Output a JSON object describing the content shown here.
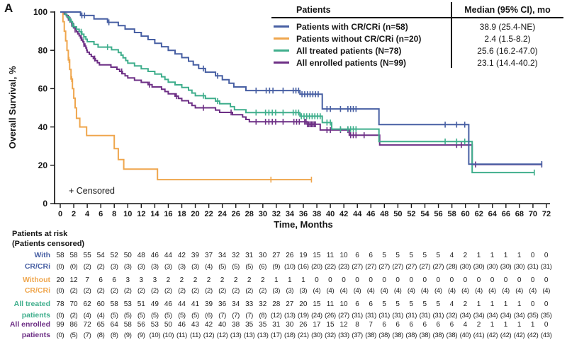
{
  "panel_label": "A",
  "legend_table": {
    "col1_header": "Patients",
    "col2_header": "Median (95% CI), mo"
  },
  "at_risk_table": {
    "header_line1": "Patients at risk",
    "header_line2": "(Patients censored)",
    "time_points": [
      0,
      2,
      4,
      6,
      8,
      10,
      12,
      14,
      16,
      18,
      20,
      22,
      24,
      26,
      28,
      30,
      32,
      34,
      36,
      38,
      40,
      42,
      44,
      46,
      48,
      50,
      52,
      54,
      56,
      58,
      60,
      62,
      64,
      66,
      68,
      70,
      72
    ],
    "groups": [
      {
        "label_line1": "With",
        "label_line2": "CR/CRi",
        "color": "#475fa3",
        "at_risk": [
          58,
          58,
          55,
          54,
          52,
          50,
          48,
          46,
          44,
          42,
          39,
          37,
          34,
          32,
          31,
          30,
          27,
          26,
          19,
          15,
          11,
          10,
          6,
          6,
          5,
          5,
          5,
          5,
          5,
          4,
          2,
          1,
          1,
          1,
          1,
          0,
          0
        ],
        "censored": [
          "(0)",
          "(0)",
          "(2)",
          "(2)",
          "(3)",
          "(3)",
          "(3)",
          "(3)",
          "(3)",
          "(3)",
          "(3)",
          "(4)",
          "(5)",
          "(5)",
          "(5)",
          "(6)",
          "(9)",
          "(10)",
          "(16)",
          "(20)",
          "(22)",
          "(23)",
          "(27)",
          "(27)",
          "(27)",
          "(27)",
          "(27)",
          "(27)",
          "(27)",
          "(28)",
          "(30)",
          "(30)",
          "(30)",
          "(30)",
          "(30)",
          "(31)",
          "(31)"
        ]
      },
      {
        "label_line1": "Without",
        "label_line2": "CR/CRi",
        "color": "#efa64d",
        "at_risk": [
          20,
          12,
          7,
          6,
          6,
          3,
          3,
          3,
          2,
          2,
          2,
          2,
          2,
          2,
          2,
          2,
          1,
          1,
          1,
          0,
          0,
          0,
          0,
          0,
          0,
          0,
          0,
          0,
          0,
          0,
          0,
          0,
          0,
          0,
          0,
          0,
          0
        ],
        "censored": [
          "(0)",
          "(2)",
          "(2)",
          "(2)",
          "(2)",
          "(2)",
          "(2)",
          "(2)",
          "(2)",
          "(2)",
          "(2)",
          "(2)",
          "(2)",
          "(2)",
          "(2)",
          "(2)",
          "(3)",
          "(3)",
          "(3)",
          "(4)",
          "(4)",
          "(4)",
          "(4)",
          "(4)",
          "(4)",
          "(4)",
          "(4)",
          "(4)",
          "(4)",
          "(4)",
          "(4)",
          "(4)",
          "(4)",
          "(4)",
          "(4)",
          "(4)",
          "(4)"
        ]
      },
      {
        "label_line1": "All treated",
        "label_line2": "patients",
        "color": "#3fae8c",
        "at_risk": [
          78,
          70,
          62,
          60,
          58,
          53,
          51,
          49,
          46,
          44,
          41,
          39,
          36,
          34,
          33,
          32,
          28,
          27,
          20,
          15,
          11,
          10,
          6,
          6,
          5,
          5,
          5,
          5,
          5,
          4,
          2,
          1,
          1,
          1,
          1,
          0,
          0
        ],
        "censored": [
          "(0)",
          "(2)",
          "(4)",
          "(4)",
          "(5)",
          "(5)",
          "(5)",
          "(5)",
          "(5)",
          "(5)",
          "(5)",
          "(6)",
          "(7)",
          "(7)",
          "(7)",
          "(8)",
          "(12)",
          "(13)",
          "(19)",
          "(24)",
          "(26)",
          "(27)",
          "(31)",
          "(31)",
          "(31)",
          "(31)",
          "(31)",
          "(31)",
          "(31)",
          "(32)",
          "(34)",
          "(34)",
          "(34)",
          "(34)",
          "(34)",
          "(35)",
          "(35)"
        ]
      },
      {
        "label_line1": "All enrolled",
        "label_line2": "patients",
        "color": "#6d2f85",
        "at_risk": [
          99,
          86,
          72,
          65,
          64,
          58,
          56,
          53,
          50,
          46,
          43,
          42,
          40,
          38,
          35,
          35,
          31,
          30,
          26,
          17,
          15,
          12,
          8,
          7,
          6,
          6,
          6,
          6,
          6,
          6,
          4,
          2,
          1,
          1,
          1,
          1,
          0
        ],
        "censored": [
          "(0)",
          "(5)",
          "(7)",
          "(8)",
          "(8)",
          "(9)",
          "(9)",
          "(10)",
          "(10)",
          "(11)",
          "(11)",
          "(12)",
          "(12)",
          "(13)",
          "(13)",
          "(13)",
          "(17)",
          "(18)",
          "(21)",
          "(30)",
          "(32)",
          "(33)",
          "(37)",
          "(38)",
          "(38)",
          "(38)",
          "(38)",
          "(38)",
          "(38)",
          "(38)",
          "(40)",
          "(41)",
          "(42)",
          "(42)",
          "(42)",
          "(42)",
          "(43)"
        ]
      }
    ]
  },
  "chart_data": {
    "type": "line",
    "subtype": "kaplan-meier-step",
    "title": "Overall Survival",
    "xlabel": "Time, Months",
    "ylabel": "Overall Survival, %",
    "censored_note": "+ Censored",
    "xlim": [
      0,
      72
    ],
    "ylim": [
      0,
      100
    ],
    "x_ticks": [
      0,
      2,
      4,
      6,
      8,
      10,
      12,
      14,
      16,
      18,
      20,
      22,
      24,
      26,
      28,
      30,
      32,
      34,
      36,
      38,
      40,
      42,
      44,
      46,
      48,
      50,
      52,
      54,
      56,
      58,
      60,
      62,
      64,
      66,
      68,
      70,
      72
    ],
    "y_ticks": [
      0,
      20,
      40,
      60,
      80,
      100
    ],
    "grid": false,
    "legend_position": "top-right",
    "series": [
      {
        "name": "Patients with CR/CRi (n=58)",
        "median": "38.9 (25.4-NE)",
        "color": "#475fa3",
        "steps": [
          [
            0,
            100
          ],
          [
            3,
            98.2
          ],
          [
            5,
            96.4
          ],
          [
            7,
            94.6
          ],
          [
            8.6,
            92.9
          ],
          [
            9.6,
            91.1
          ],
          [
            11,
            89.3
          ],
          [
            12,
            87.4
          ],
          [
            13,
            85.6
          ],
          [
            14,
            83.7
          ],
          [
            15,
            81.9
          ],
          [
            16,
            80
          ],
          [
            17,
            78.1
          ],
          [
            18,
            76.2
          ],
          [
            19,
            74.3
          ],
          [
            19.7,
            72.4
          ],
          [
            20.5,
            70.5
          ],
          [
            21.5,
            68.6
          ],
          [
            23,
            66.7
          ],
          [
            24,
            64.7
          ],
          [
            25,
            62.8
          ],
          [
            25.7,
            60.9
          ],
          [
            27.5,
            59
          ],
          [
            35.5,
            57.1
          ],
          [
            38.8,
            49.4
          ],
          [
            47.2,
            41.2
          ],
          [
            60.5,
            20.6
          ]
        ],
        "end_time": 71.3,
        "censor_times": [
          3.2,
          3.6,
          7.2,
          21.2,
          23.3,
          29,
          30.5,
          31,
          31.5,
          33,
          34.5,
          34.9,
          35.3,
          35.8,
          36.2,
          36.6,
          37,
          37.4,
          37.8,
          38.2,
          39.5,
          40,
          41.5,
          42.6,
          43,
          43.4,
          43.8,
          57,
          58.7,
          59.9,
          71.3
        ]
      },
      {
        "name": "Patients without CR/CRi (n=20)",
        "median": "2.4 (1.5-8.2)",
        "color": "#efa64d",
        "steps": [
          [
            0,
            100
          ],
          [
            0.4,
            95
          ],
          [
            0.6,
            90
          ],
          [
            0.8,
            85
          ],
          [
            1,
            80
          ],
          [
            1.2,
            75
          ],
          [
            1.4,
            70
          ],
          [
            1.6,
            65
          ],
          [
            1.8,
            60
          ],
          [
            2,
            55
          ],
          [
            2.2,
            50
          ],
          [
            2.4,
            44.5
          ],
          [
            2.9,
            40
          ],
          [
            3.9,
            35.5
          ],
          [
            8,
            28.7
          ],
          [
            8.6,
            23
          ],
          [
            9.4,
            18
          ],
          [
            14.4,
            12.5
          ]
        ],
        "end_time": 37.2,
        "censor_times": [
          1.3,
          1.7,
          31.2,
          37.2
        ]
      },
      {
        "name": "All treated patients (N=78)",
        "median": "25.6 (16.2-47.0)",
        "color": "#3fae8c",
        "steps": [
          [
            0,
            100
          ],
          [
            0.7,
            98.7
          ],
          [
            1,
            97.4
          ],
          [
            1.3,
            96.2
          ],
          [
            1.6,
            94.9
          ],
          [
            1.8,
            93.6
          ],
          [
            2,
            92.3
          ],
          [
            2.4,
            91
          ],
          [
            2.8,
            89.7
          ],
          [
            3.2,
            88.4
          ],
          [
            3.5,
            87.1
          ],
          [
            3.8,
            85.8
          ],
          [
            4,
            84.5
          ],
          [
            5,
            83.1
          ],
          [
            5.6,
            81.7
          ],
          [
            7.6,
            80.3
          ],
          [
            8.6,
            78.9
          ],
          [
            9,
            77.5
          ],
          [
            9.3,
            76.1
          ],
          [
            9.7,
            74.7
          ],
          [
            10,
            73.3
          ],
          [
            11,
            71.9
          ],
          [
            12,
            70.4
          ],
          [
            13,
            69
          ],
          [
            14,
            67.6
          ],
          [
            15,
            66.2
          ],
          [
            15.5,
            64.8
          ],
          [
            16,
            63.4
          ],
          [
            17,
            62
          ],
          [
            18,
            60.6
          ],
          [
            19,
            59.2
          ],
          [
            19.5,
            57.7
          ],
          [
            20,
            56.3
          ],
          [
            21.5,
            54.9
          ],
          [
            23,
            53.5
          ],
          [
            23.6,
            52.1
          ],
          [
            25.2,
            50.6
          ],
          [
            25.8,
            49
          ],
          [
            27.5,
            47.5
          ],
          [
            35.5,
            45.6
          ],
          [
            38.8,
            42.3
          ],
          [
            40.2,
            38.9
          ],
          [
            47.2,
            32.4
          ],
          [
            61,
            16.2
          ]
        ],
        "end_time": 70.2,
        "censor_times": [
          1.4,
          1.8,
          3.1,
          3.5,
          7,
          21.2,
          23.3,
          29,
          30.4,
          30.9,
          31.4,
          31.9,
          33,
          34.5,
          34.9,
          35.3,
          35.7,
          36.1,
          36.5,
          36.9,
          37.3,
          37.7,
          38.1,
          38.5,
          39.5,
          40,
          41.5,
          42.6,
          43,
          43.4,
          43.8,
          57,
          58.7,
          59.9,
          70.2
        ]
      },
      {
        "name": "All enrolled patients (N=99)",
        "median": "23.1 (14.4-40.2)",
        "color": "#6d2f85",
        "steps": [
          [
            0,
            100
          ],
          [
            0.6,
            99
          ],
          [
            0.9,
            98
          ],
          [
            1.1,
            97
          ],
          [
            1.3,
            95.9
          ],
          [
            1.5,
            94.9
          ],
          [
            1.7,
            93.9
          ],
          [
            1.85,
            92.9
          ],
          [
            2,
            91.8
          ],
          [
            2.2,
            90.8
          ],
          [
            2.4,
            89.7
          ],
          [
            2.6,
            88.6
          ],
          [
            2.8,
            87.6
          ],
          [
            3,
            86.5
          ],
          [
            3.2,
            85.4
          ],
          [
            3.35,
            84.4
          ],
          [
            3.5,
            83.3
          ],
          [
            3.65,
            82.2
          ],
          [
            3.8,
            81.2
          ],
          [
            3.9,
            80.1
          ],
          [
            4,
            79
          ],
          [
            4.3,
            77.9
          ],
          [
            4.6,
            76.8
          ],
          [
            4.9,
            75.7
          ],
          [
            5.2,
            74.6
          ],
          [
            5.5,
            73.5
          ],
          [
            5.8,
            72.4
          ],
          [
            7.5,
            71.2
          ],
          [
            8.4,
            70.1
          ],
          [
            8.8,
            69
          ],
          [
            9.2,
            67.8
          ],
          [
            9.6,
            66.7
          ],
          [
            10,
            65.6
          ],
          [
            11,
            64.4
          ],
          [
            12,
            63.3
          ],
          [
            13,
            62.1
          ],
          [
            13.6,
            60.9
          ],
          [
            15,
            59.7
          ],
          [
            15.5,
            58.5
          ],
          [
            16,
            57.3
          ],
          [
            17,
            56.1
          ],
          [
            17.5,
            54.9
          ],
          [
            18,
            53.7
          ],
          [
            19,
            52.5
          ],
          [
            19.5,
            51.2
          ],
          [
            20,
            50
          ],
          [
            23,
            48.8
          ],
          [
            23.6,
            47.6
          ],
          [
            25.5,
            46.4
          ],
          [
            27,
            45.2
          ],
          [
            27.5,
            43.9
          ],
          [
            28,
            42.7
          ],
          [
            36.6,
            41.4
          ],
          [
            38.5,
            38.4
          ],
          [
            42.8,
            35.7
          ],
          [
            47.3,
            30.6
          ],
          [
            61,
            20.4
          ]
        ],
        "end_time": 71.3,
        "censor_times": [
          1.2,
          1.45,
          1.7,
          1.95,
          2.2,
          3.1,
          3.5,
          5.1,
          9.1,
          13.2,
          17.2,
          21.2,
          25.3,
          29,
          30.4,
          30.9,
          31.4,
          31.9,
          33,
          34.6,
          35,
          35.4,
          36.2,
          36.4,
          36.6,
          36.8,
          37,
          37.2,
          37.4,
          37.6,
          37.8,
          39.5,
          40,
          41.5,
          42.6,
          43,
          43.4,
          43.8,
          45,
          58.7,
          59.4,
          61.5,
          71.3
        ]
      }
    ]
  }
}
